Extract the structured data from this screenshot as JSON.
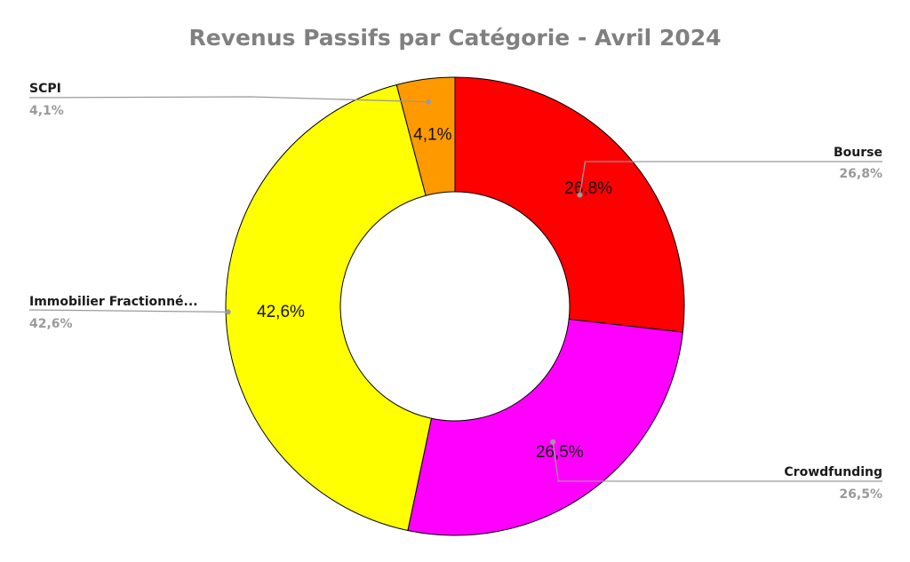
{
  "chart_data": {
    "type": "pie",
    "title": "Revenus Passifs par Catégorie - Avril 2024",
    "donut": true,
    "slices": [
      {
        "label": "Bourse",
        "value": 26.8,
        "display": "26,8%",
        "color": "#ff0000"
      },
      {
        "label": "Crowdfunding",
        "value": 26.5,
        "display": "26,5%",
        "color": "#ff00ff"
      },
      {
        "label": "Immobilier Fractionné...",
        "value": 42.6,
        "display": "42,6%",
        "color": "#ffff00"
      },
      {
        "label": "SCPI",
        "value": 4.1,
        "display": "4,1%",
        "color": "#ff9900"
      }
    ],
    "label_color": "#9a9a9a",
    "leader_color": "#9a9a9a"
  }
}
